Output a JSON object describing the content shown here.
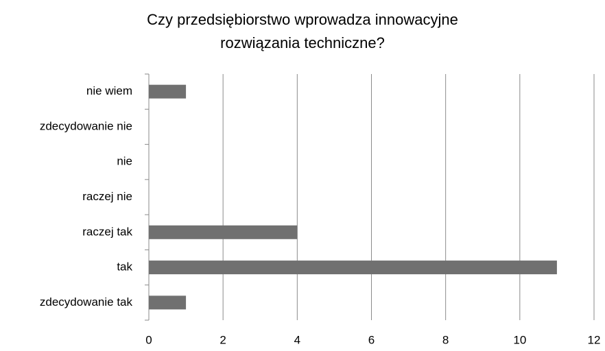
{
  "chart_data": {
    "type": "bar",
    "orientation": "horizontal",
    "title": [
      "Czy przedsiębiorstwo wprowadza innowacyjne",
      "rozwiązania techniczne?"
    ],
    "categories": [
      "nie wiem",
      "zdecydowanie nie",
      "nie",
      "raczej nie",
      "raczej tak",
      "tak",
      "zdecydowanie tak"
    ],
    "values": [
      1,
      0,
      0,
      0,
      4,
      11,
      1
    ],
    "color": "#707070",
    "xlim": [
      0,
      12
    ],
    "xticks": [
      0,
      2,
      4,
      6,
      8,
      10,
      12
    ],
    "grid": true
  }
}
